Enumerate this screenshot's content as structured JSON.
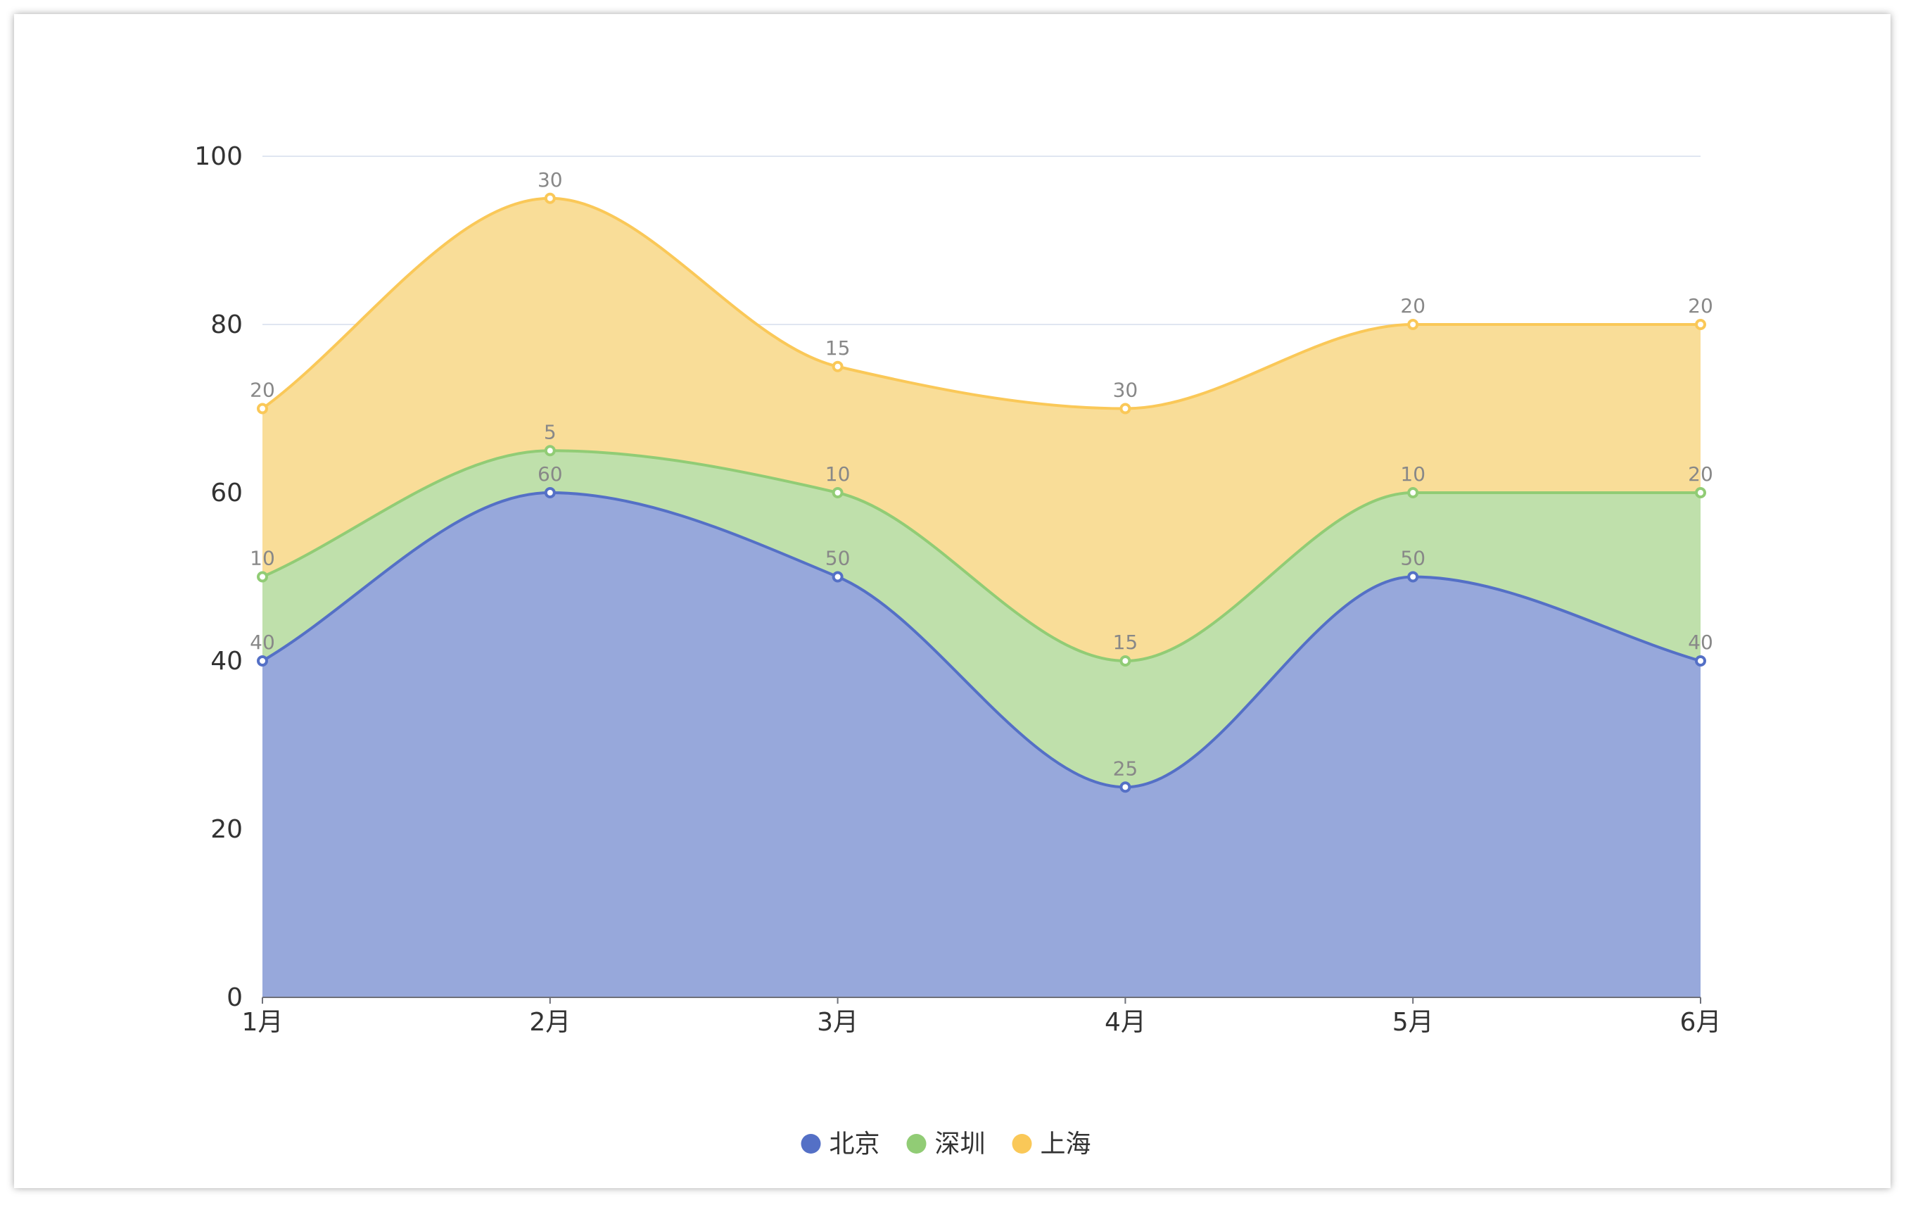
{
  "chart_data": {
    "type": "area",
    "stacked": true,
    "smooth": true,
    "categories": [
      "1月",
      "2月",
      "3月",
      "4月",
      "5月",
      "6月"
    ],
    "series": [
      {
        "name": "北京",
        "color": "#5470c6",
        "fill": "#97a8db",
        "values": [
          40,
          60,
          50,
          25,
          50,
          40
        ]
      },
      {
        "name": "深圳",
        "color": "#91cc75",
        "fill": "#bfe0ab",
        "values": [
          10,
          5,
          10,
          15,
          10,
          20
        ]
      },
      {
        "name": "上海",
        "color": "#fac858",
        "fill": "#f9dd98",
        "values": [
          20,
          30,
          15,
          30,
          20,
          20
        ]
      }
    ],
    "ylim": [
      0,
      100
    ],
    "yticks": [
      0,
      20,
      40,
      60,
      80,
      100
    ],
    "grid": true,
    "legend_position": "bottom-center",
    "data_labels": true
  }
}
